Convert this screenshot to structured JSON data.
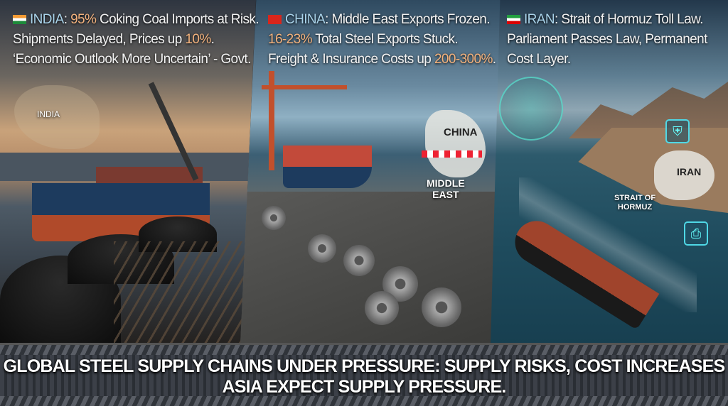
{
  "panels": [
    {
      "country": "INDIA",
      "flag": "india-flag-icon",
      "line1_pre": " ",
      "line1_hl": "95%",
      "line1_post": " Coking Coal Imports at Risk.",
      "line2_pre": "Shipments Delayed, Prices up ",
      "line2_hl": "10%",
      "line2_post": ".",
      "line3": "‘Economic Outlook More Uncertain’ - Govt.",
      "map_label": "INDIA"
    },
    {
      "country": "CHINA",
      "flag": "china-flag-icon",
      "line1": " Middle East Exports Frozen.",
      "line2_hl": "16-23%",
      "line2_post": " Total Steel Exports Stuck.",
      "line3_pre": "Freight & Insurance Costs up ",
      "line3_hl": "200-300%",
      "line3_post": ".",
      "map_label": "CHINA",
      "map_label2_a": "MIDDLE",
      "map_label2_b": "EAST"
    },
    {
      "country": "IRAN",
      "flag": "iran-flag-icon",
      "line1": " Strait of Hormuz Toll Law.",
      "line2": "Parliament Passes Law, Permanent",
      "line3": "Cost Layer.",
      "map_label": "IRAN",
      "strait_a": "STRAIT OF",
      "strait_b": "HORMUZ"
    }
  ],
  "banner": {
    "line1": "GLOBAL STEEL SUPPLY CHAINS UNDER PRESSURE: SUPPLY RISKS, COST INCREASES",
    "line2": "ASIA EXPECT SUPPLY PRESSURE."
  },
  "colors": {
    "highlight": "#f3b27d",
    "country": "#a9d3ea",
    "text": "#f2f2f2"
  }
}
